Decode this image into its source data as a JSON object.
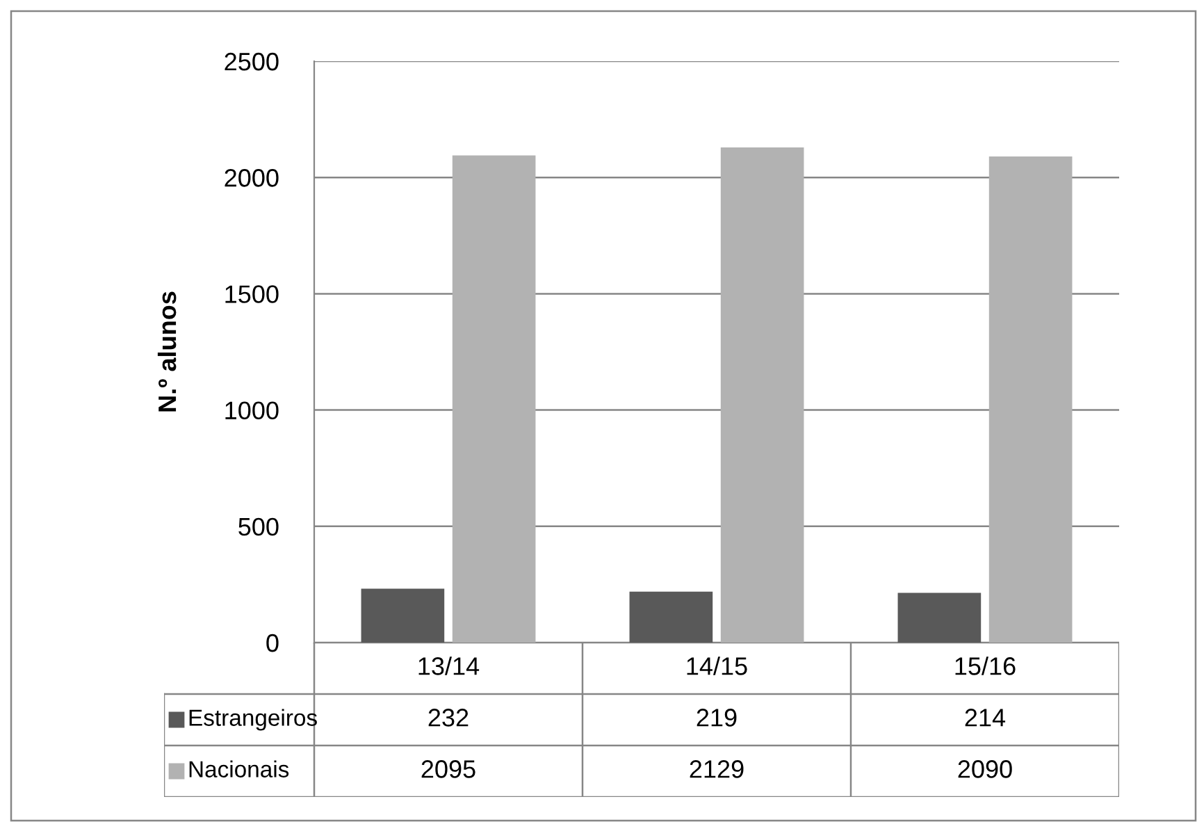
{
  "chart_data": {
    "type": "bar",
    "ylabel": "N.º alunos",
    "categories": [
      "13/14",
      "14/15",
      "15/16"
    ],
    "series": [
      {
        "name": "Estrangeiros",
        "color": "#595959",
        "values": [
          232,
          219,
          214
        ]
      },
      {
        "name": "Nacionais",
        "color": "#b2b2b2",
        "values": [
          2095,
          2129,
          2090
        ]
      }
    ],
    "ylim": [
      0,
      2500
    ],
    "yticks": [
      0,
      500,
      1000,
      1500,
      2000,
      2500
    ],
    "grid": "y",
    "legend": "bottom",
    "data_labels": true
  }
}
